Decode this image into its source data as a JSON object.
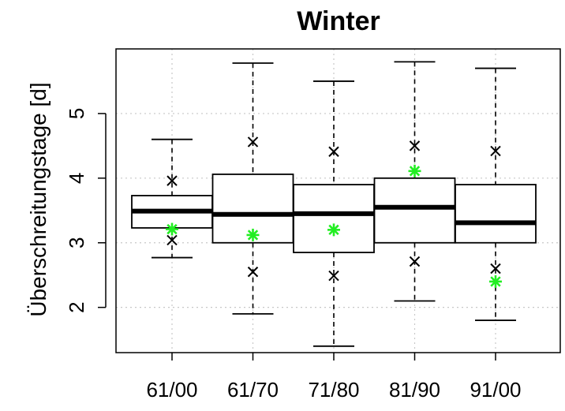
{
  "chart_data": {
    "type": "boxplot",
    "title": "Winter",
    "xlabel": "",
    "ylabel": "Überschreitungstage [d]",
    "categories": [
      "61/00",
      "61/70",
      "71/80",
      "81/90",
      "91/00"
    ],
    "yticks": [
      "2",
      "3",
      "4",
      "5"
    ],
    "ylim": [
      1.3,
      6.0
    ],
    "grid": true,
    "boxes": [
      {
        "min": 2.77,
        "q1": 3.23,
        "median": 3.49,
        "q3": 3.73,
        "max": 4.6
      },
      {
        "min": 1.9,
        "q1": 3.0,
        "median": 3.44,
        "q3": 4.06,
        "max": 5.78
      },
      {
        "min": 1.4,
        "q1": 2.85,
        "median": 3.45,
        "q3": 3.9,
        "max": 5.5
      },
      {
        "min": 2.1,
        "q1": 3.0,
        "median": 3.55,
        "q3": 4.0,
        "max": 5.8
      },
      {
        "min": 1.8,
        "q1": 3.0,
        "median": 3.31,
        "q3": 3.9,
        "max": 5.7
      }
    ],
    "x_markers": [
      {
        "name": "",
        "color": "#000000",
        "values": [
          [
            3.04,
            3.96
          ],
          [
            2.55,
            4.56
          ],
          [
            2.49,
            4.41
          ],
          [
            2.71,
            4.5
          ],
          [
            2.6,
            4.42
          ]
        ]
      }
    ],
    "star_markers": [
      {
        "name": "",
        "color": "#22ee22",
        "values": [
          3.21,
          3.12,
          3.2,
          4.11,
          2.4
        ]
      }
    ]
  }
}
